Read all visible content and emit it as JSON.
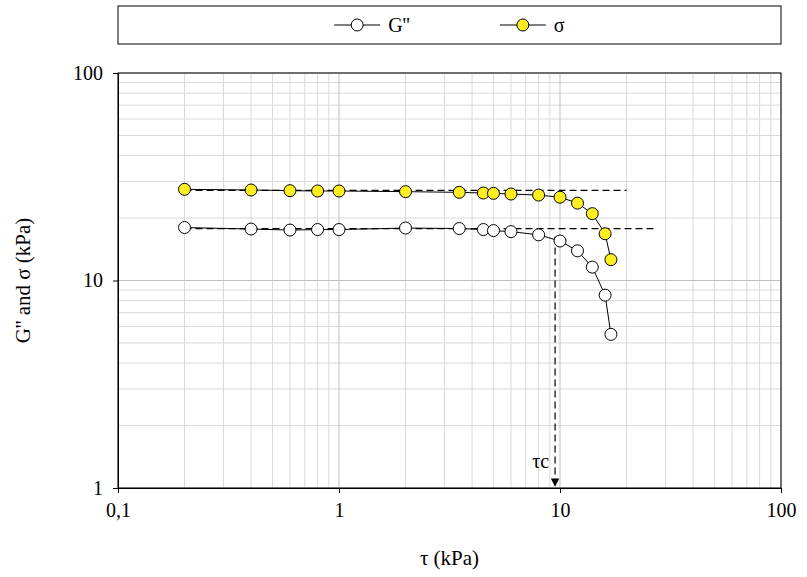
{
  "chart_data": {
    "type": "line",
    "x_label": "τ (kPa)",
    "y_label": "G'' and σ (kPa)",
    "log": true,
    "grid": true,
    "legend": "top",
    "xlim": [
      0.1,
      100
    ],
    "ylim": [
      1,
      100
    ],
    "xticks": [
      {
        "value": 0.1,
        "label": "0,1"
      },
      1,
      10,
      100
    ],
    "yticks": [
      1,
      10,
      100
    ],
    "series": [
      {
        "name": "G''",
        "color": "#ffffff",
        "marker": "circle",
        "line_style": "solid",
        "x": [
          0.2,
          0.4,
          0.6,
          0.8,
          1,
          2,
          3.5,
          4.5,
          5,
          6,
          8,
          10,
          12,
          14,
          16,
          17
        ],
        "values": [
          18,
          17.7,
          17.5,
          17.6,
          17.6,
          17.9,
          17.8,
          17.6,
          17.4,
          17.2,
          16.6,
          15.5,
          13.9,
          11.6,
          8.5,
          5.5
        ]
      },
      {
        "name": "σ",
        "color": "#ffee22",
        "marker": "circle",
        "line_style": "solid",
        "x": [
          0.2,
          0.4,
          0.6,
          0.8,
          1,
          2,
          3.5,
          4.5,
          5,
          6,
          8,
          10,
          12,
          14,
          16,
          17
        ],
        "values": [
          27.5,
          27.3,
          27.1,
          27,
          27,
          26.8,
          26.6,
          26.4,
          26.3,
          26.1,
          25.8,
          25.2,
          23.6,
          21,
          16.8,
          12.6
        ]
      }
    ],
    "reference_lines": [
      {
        "y": 27.2,
        "x0": 0.2,
        "x1": 20
      },
      {
        "y": 17.8,
        "x0": 0.2,
        "x1": 27
      }
    ],
    "vline": {
      "x": 9.5,
      "y0": 16.3,
      "y1": 1,
      "label": "τc"
    }
  }
}
